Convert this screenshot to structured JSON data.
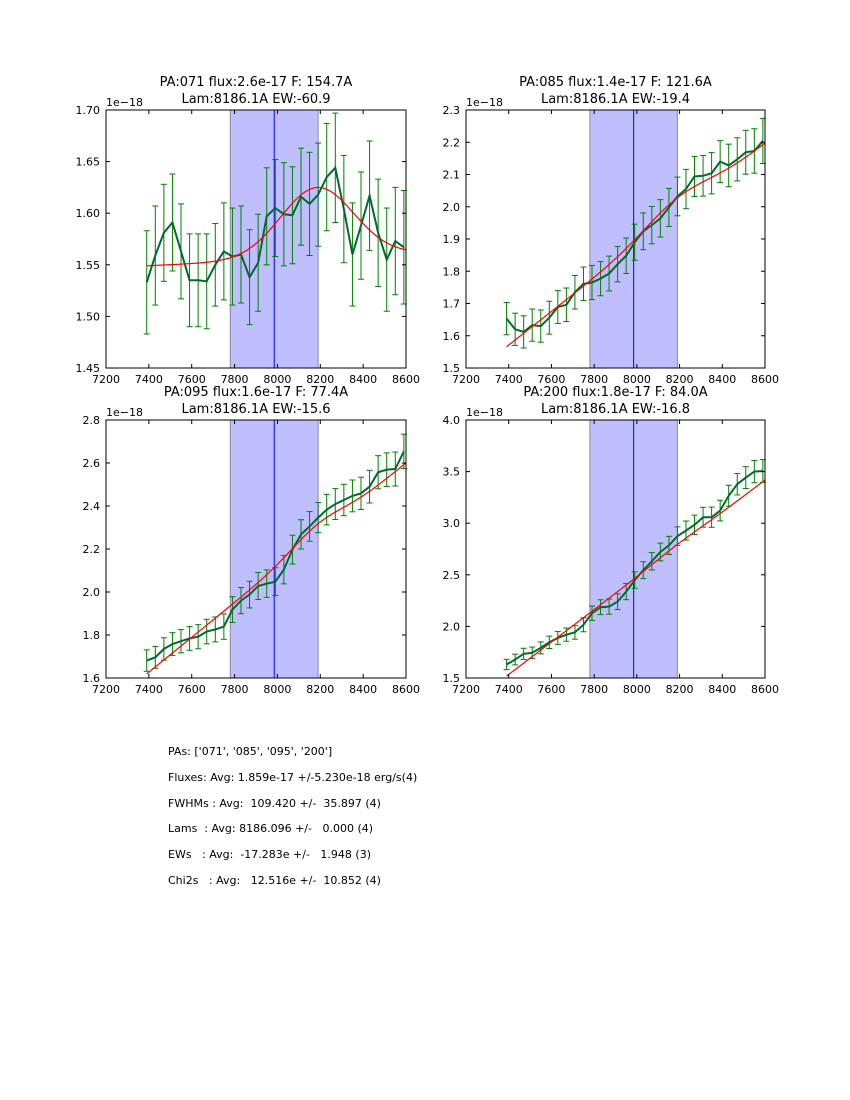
{
  "chart_data": [
    {
      "type": "line",
      "title_line1": "PA:071 flux:2.6e-17 F: 154.7A",
      "title_line2": "Lam:8186.1A EW:-60.9",
      "offset_label": "1e−18",
      "xlim": [
        7200,
        8600
      ],
      "ylim": [
        1.45,
        1.7
      ],
      "xticks": [
        7200,
        7400,
        7600,
        7800,
        8000,
        8200,
        8400,
        8600
      ],
      "yticks": [
        1.45,
        1.5,
        1.55,
        1.6,
        1.65,
        1.7
      ],
      "ytick_labels": [
        "1.45",
        "1.50",
        "1.55",
        "1.60",
        "1.65",
        "1.70"
      ],
      "window": [
        7780,
        8190
      ],
      "marker_line": 7985,
      "x": [
        7390,
        7430,
        7470,
        7510,
        7550,
        7590,
        7630,
        7670,
        7710,
        7750,
        7790,
        7830,
        7870,
        7910,
        7950,
        7990,
        8030,
        8070,
        8110,
        8150,
        8190,
        8230,
        8270,
        8310,
        8350,
        8390,
        8430,
        8470,
        8510,
        8550,
        8590
      ],
      "y": [
        1.533,
        1.559,
        1.581,
        1.591,
        1.563,
        1.535,
        1.535,
        1.534,
        1.55,
        1.563,
        1.558,
        1.56,
        1.538,
        1.552,
        1.597,
        1.605,
        1.599,
        1.598,
        1.616,
        1.609,
        1.618,
        1.635,
        1.644,
        1.604,
        1.56,
        1.588,
        1.617,
        1.581,
        1.555,
        1.573,
        1.567
      ],
      "yerr": [
        0.05,
        0.048,
        0.047,
        0.047,
        0.046,
        0.045,
        0.045,
        0.046,
        0.04,
        0.047,
        0.047,
        0.047,
        0.046,
        0.047,
        0.047,
        0.047,
        0.05,
        0.047,
        0.047,
        0.05,
        0.05,
        0.052,
        0.053,
        0.052,
        0.05,
        0.052,
        0.053,
        0.052,
        0.05,
        0.052,
        0.055
      ],
      "fit": {
        "x_start": 7390,
        "x_end": 8600,
        "c0": 1.549,
        "slope": 1e-05,
        "amp": 0.068,
        "center": 8186,
        "sigma": 170
      }
    },
    {
      "type": "line",
      "title_line1": "PA:085 flux:1.4e-17 F: 121.6A",
      "title_line2": "Lam:8186.1A EW:-19.4",
      "offset_label": "1e−18",
      "xlim": [
        7200,
        8600
      ],
      "ylim": [
        1.5,
        2.3
      ],
      "xticks": [
        7200,
        7400,
        7600,
        7800,
        8000,
        8200,
        8400,
        8600
      ],
      "yticks": [
        1.5,
        1.6,
        1.7,
        1.8,
        1.9,
        2.0,
        2.1,
        2.2,
        2.3
      ],
      "ytick_labels": [
        "1.5",
        "1.6",
        "1.7",
        "1.8",
        "1.9",
        "2.0",
        "2.1",
        "2.2",
        "2.3"
      ],
      "window": [
        7780,
        8190
      ],
      "marker_line": 7985,
      "x": [
        7390,
        7430,
        7470,
        7510,
        7550,
        7590,
        7630,
        7670,
        7710,
        7750,
        7790,
        7830,
        7870,
        7910,
        7950,
        7990,
        8030,
        8070,
        8110,
        8150,
        8190,
        8230,
        8270,
        8310,
        8350,
        8390,
        8430,
        8470,
        8510,
        8550,
        8590
      ],
      "y": [
        1.653,
        1.62,
        1.612,
        1.633,
        1.63,
        1.656,
        1.689,
        1.696,
        1.735,
        1.761,
        1.765,
        1.777,
        1.793,
        1.822,
        1.848,
        1.89,
        1.924,
        1.943,
        1.964,
        1.998,
        2.032,
        2.055,
        2.094,
        2.096,
        2.104,
        2.14,
        2.128,
        2.147,
        2.169,
        2.173,
        2.204
      ],
      "yerr": [
        0.05,
        0.05,
        0.05,
        0.05,
        0.05,
        0.051,
        0.051,
        0.052,
        0.052,
        0.052,
        0.053,
        0.053,
        0.054,
        0.055,
        0.055,
        0.056,
        0.057,
        0.058,
        0.058,
        0.059,
        0.06,
        0.061,
        0.062,
        0.063,
        0.064,
        0.065,
        0.066,
        0.067,
        0.068,
        0.069,
        0.07
      ],
      "fit": {
        "x_start": 7390,
        "x_end": 8600,
        "c0": 1.566,
        "slope": 0.000521,
        "amp": 0.045,
        "center": 8186,
        "sigma": 150
      }
    },
    {
      "type": "line",
      "title_line1": "PA:095 flux:1.6e-17 F: 77.4A",
      "title_line2": "Lam:8186.1A EW:-15.6",
      "offset_label": "1e−18",
      "xlim": [
        7200,
        8600
      ],
      "ylim": [
        1.6,
        2.8
      ],
      "xticks": [
        7200,
        7400,
        7600,
        7800,
        8000,
        8200,
        8400,
        8600
      ],
      "yticks": [
        1.6,
        1.8,
        2.0,
        2.2,
        2.4,
        2.6,
        2.8
      ],
      "ytick_labels": [
        "1.6",
        "1.8",
        "2.0",
        "2.2",
        "2.4",
        "2.6",
        "2.8"
      ],
      "window": [
        7780,
        8190
      ],
      "marker_line": 7985,
      "x": [
        7390,
        7430,
        7470,
        7510,
        7550,
        7590,
        7630,
        7670,
        7710,
        7750,
        7790,
        7830,
        7870,
        7910,
        7950,
        7990,
        8030,
        8070,
        8110,
        8150,
        8190,
        8230,
        8270,
        8310,
        8350,
        8390,
        8430,
        8470,
        8510,
        8550,
        8590
      ],
      "y": [
        1.681,
        1.696,
        1.735,
        1.758,
        1.771,
        1.784,
        1.792,
        1.816,
        1.826,
        1.839,
        1.918,
        1.96,
        1.988,
        2.028,
        2.039,
        2.048,
        2.104,
        2.197,
        2.268,
        2.305,
        2.346,
        2.383,
        2.409,
        2.428,
        2.447,
        2.459,
        2.49,
        2.557,
        2.569,
        2.572,
        2.654
      ],
      "yerr": [
        0.05,
        0.051,
        0.052,
        0.053,
        0.054,
        0.055,
        0.056,
        0.057,
        0.058,
        0.059,
        0.06,
        0.061,
        0.062,
        0.063,
        0.064,
        0.065,
        0.066,
        0.067,
        0.068,
        0.069,
        0.07,
        0.071,
        0.072,
        0.073,
        0.074,
        0.075,
        0.076,
        0.077,
        0.078,
        0.079,
        0.08
      ],
      "fit": {
        "x_start": 7390,
        "x_end": 8600,
        "c0": 1.619,
        "slope": 0.000811,
        "amp": 0.05,
        "center": 8186,
        "sigma": 120
      }
    },
    {
      "type": "line",
      "title_line1": "PA:200 flux:1.8e-17 F: 84.0A",
      "title_line2": "Lam:8186.1A EW:-16.8",
      "offset_label": "1e−18",
      "xlim": [
        7200,
        8600
      ],
      "ylim": [
        1.5,
        4.0
      ],
      "xticks": [
        7200,
        7400,
        7600,
        7800,
        8000,
        8200,
        8400,
        8600
      ],
      "yticks": [
        1.5,
        2.0,
        2.5,
        3.0,
        3.5,
        4.0
      ],
      "ytick_labels": [
        "1.5",
        "2.0",
        "2.5",
        "3.0",
        "3.5",
        "4.0"
      ],
      "window": [
        7780,
        8190
      ],
      "marker_line": 7985,
      "x": [
        7390,
        7430,
        7470,
        7510,
        7550,
        7590,
        7630,
        7670,
        7710,
        7750,
        7790,
        7830,
        7870,
        7910,
        7950,
        7990,
        8030,
        8070,
        8110,
        8150,
        8190,
        8230,
        8270,
        8310,
        8350,
        8390,
        8430,
        8470,
        8510,
        8550,
        8590
      ],
      "y": [
        1.631,
        1.679,
        1.734,
        1.744,
        1.792,
        1.846,
        1.888,
        1.92,
        1.942,
        2.016,
        2.128,
        2.186,
        2.192,
        2.24,
        2.337,
        2.449,
        2.545,
        2.631,
        2.721,
        2.785,
        2.875,
        2.929,
        2.984,
        3.058,
        3.058,
        3.122,
        3.266,
        3.378,
        3.442,
        3.5,
        3.506
      ],
      "yerr": [
        0.05,
        0.052,
        0.054,
        0.056,
        0.058,
        0.06,
        0.062,
        0.064,
        0.066,
        0.068,
        0.07,
        0.072,
        0.074,
        0.076,
        0.078,
        0.08,
        0.082,
        0.084,
        0.086,
        0.088,
        0.09,
        0.092,
        0.094,
        0.096,
        0.098,
        0.1,
        0.102,
        0.104,
        0.106,
        0.108,
        0.11
      ],
      "fit": {
        "x_start": 7390,
        "x_end": 8600,
        "c0": 1.519,
        "slope": 0.00157,
        "amp": 0.02,
        "center": 8186,
        "sigma": 120
      }
    }
  ],
  "colors": {
    "data": "#006a2e",
    "errorbar": "#008000",
    "fit": "#ff0000",
    "window": "#bfbfff",
    "marker": "#0000ff"
  },
  "stats": [
    "PAs: ['071', '085', '095', '200']",
    "Fluxes: Avg: 1.859e-17 +/-5.230e-18 erg/s(4)",
    "FWHMs : Avg:  109.420 +/-  35.897 (4)",
    "Lams  : Avg: 8186.096 +/-   0.000 (4)",
    "EWs   : Avg:  -17.283e +/-   1.948 (3)",
    "Chi2s   : Avg:   12.516e +/-  10.852 (4)"
  ]
}
